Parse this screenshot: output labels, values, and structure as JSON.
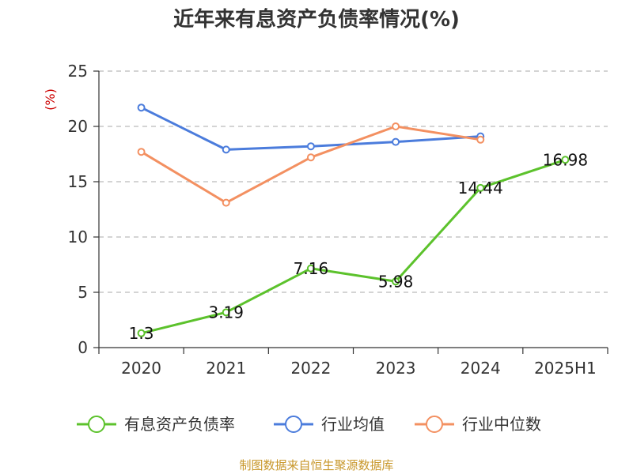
{
  "chart_data": {
    "type": "line",
    "title": "近年来有息资产负债率情况(%)",
    "ylabel": "(%)",
    "ylim": [
      0,
      25
    ],
    "yticks": [
      0,
      5,
      10,
      15,
      20,
      25
    ],
    "categories": [
      "2020",
      "2021",
      "2022",
      "2023",
      "2024",
      "2025H1"
    ],
    "grid": true,
    "legend_position": "bottom",
    "series": [
      {
        "name": "有息资产负债率",
        "color": "#5cc22c",
        "values": [
          1.3,
          3.19,
          7.16,
          5.98,
          14.44,
          16.98
        ],
        "labels": [
          "1.3",
          "3.19",
          "7.16",
          "5.98",
          "14.44",
          "16.98"
        ]
      },
      {
        "name": "行业均值",
        "color": "#4b7cdc",
        "values": [
          21.7,
          17.9,
          18.2,
          18.6,
          19.1,
          null
        ]
      },
      {
        "name": "行业中位数",
        "color": "#f39061",
        "values": [
          17.7,
          13.1,
          17.2,
          20.0,
          18.8,
          null
        ]
      }
    ]
  },
  "source": "制图数据来自恒生聚源数据库"
}
